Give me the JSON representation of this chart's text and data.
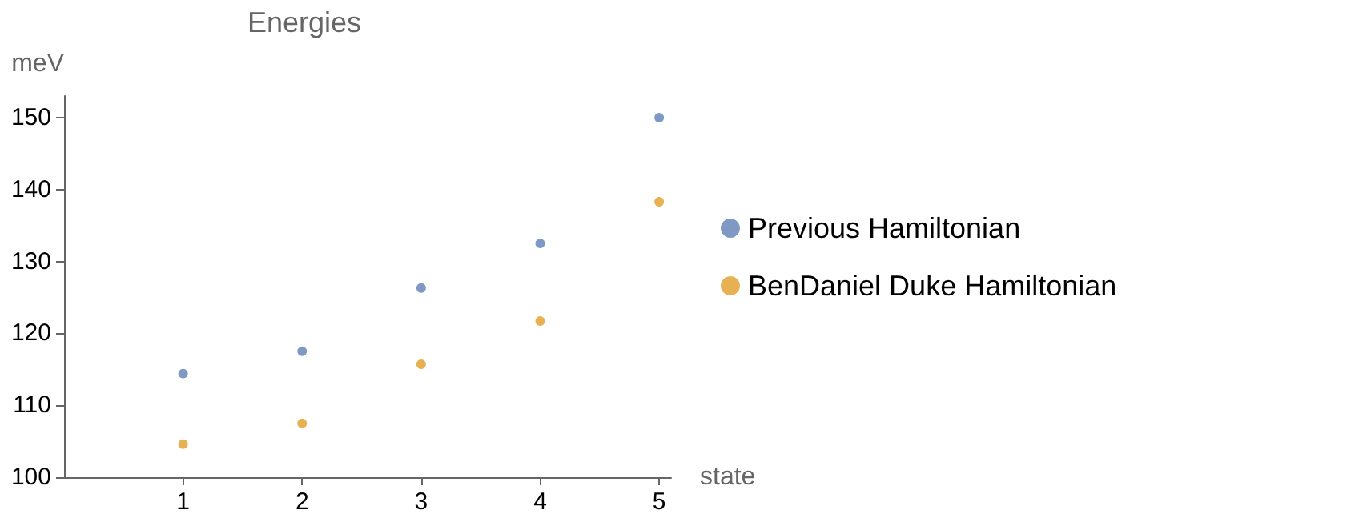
{
  "chart_data": {
    "type": "scatter",
    "title": "Energies",
    "xlabel": "state",
    "ylabel": "meV",
    "x": [
      1,
      2,
      3,
      4,
      5
    ],
    "series": [
      {
        "name": "Previous Hamiltonian",
        "color": "#5e81b5",
        "values": [
          114.4,
          117.5,
          126.3,
          132.5,
          150
        ]
      },
      {
        "name": "BenDaniel Duke Hamiltonian",
        "color": "#e19c24",
        "values": [
          104.6,
          107.5,
          115.7,
          121.7,
          138.3
        ]
      }
    ],
    "xlim": [
      0,
      5.1
    ],
    "xticks": [
      1,
      2,
      3,
      4,
      5
    ],
    "ylim": [
      100,
      153
    ],
    "yticks": [
      100,
      110,
      120,
      130,
      140,
      150
    ],
    "grid": false,
    "legend": "right",
    "marker": "circle"
  }
}
